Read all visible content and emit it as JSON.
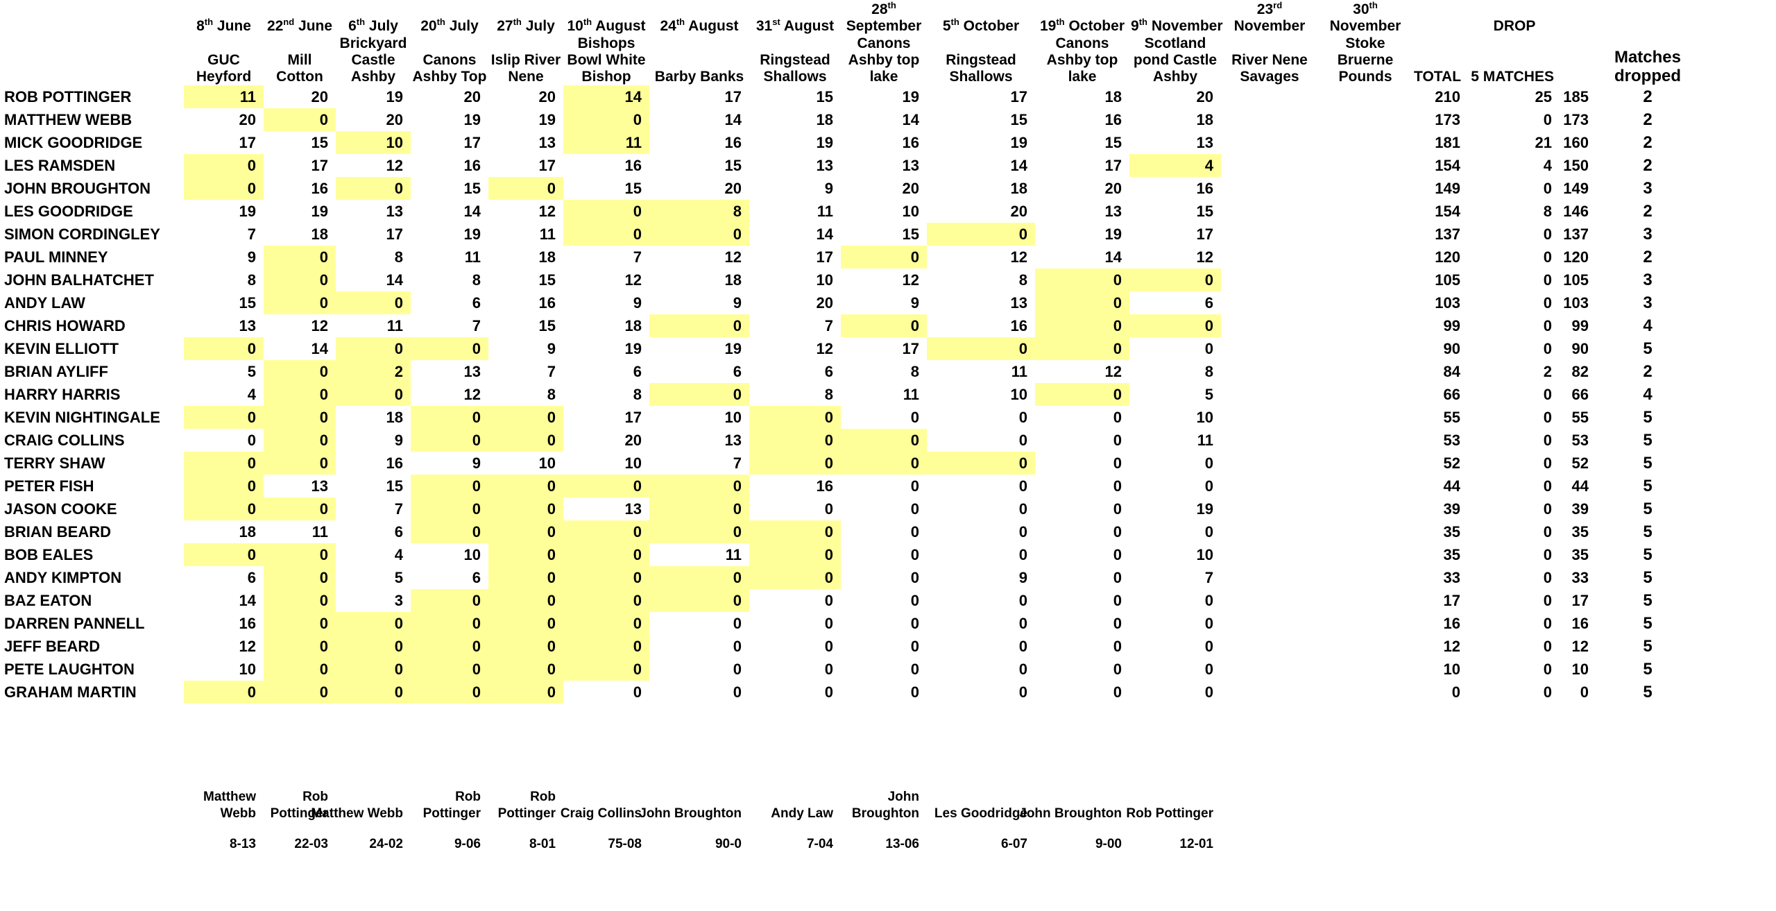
{
  "colors": {
    "highlight_yellow": "#ffff99",
    "text": "#000000",
    "background": "#ffffff"
  },
  "league_table": {
    "venue_columns": [
      {
        "date_lines": [
          "8th June"
        ],
        "venue_lines": [
          "GUC",
          "Heyford"
        ]
      },
      {
        "date_lines": [
          "22nd June"
        ],
        "venue_lines": [
          "Mill",
          "Cotton"
        ]
      },
      {
        "date_lines": [
          "6th July"
        ],
        "venue_lines": [
          "Brickyard",
          "Castle",
          "Ashby"
        ]
      },
      {
        "date_lines": [
          "20th July"
        ],
        "venue_lines": [
          "Canons",
          "Ashby Top"
        ]
      },
      {
        "date_lines": [
          "27th July"
        ],
        "venue_lines": [
          "Islip River",
          "Nene"
        ]
      },
      {
        "date_lines": [
          "10th August"
        ],
        "venue_lines": [
          "Bishops",
          "Bowl White",
          "Bishop"
        ]
      },
      {
        "date_lines": [
          "24th August"
        ],
        "venue_lines": [
          "Barby Banks"
        ]
      },
      {
        "date_lines": [
          "31st August"
        ],
        "venue_lines": [
          "Ringstead",
          "Shallows"
        ]
      },
      {
        "date_lines": [
          "28th",
          "September"
        ],
        "venue_lines": [
          "Canons",
          "Ashby top",
          "lake"
        ]
      },
      {
        "date_lines": [
          "5th October"
        ],
        "venue_lines": [
          "Ringstead",
          "Shallows"
        ]
      },
      {
        "date_lines": [
          "19th October"
        ],
        "venue_lines": [
          "Canons",
          "Ashby top",
          "lake"
        ]
      },
      {
        "date_lines": [
          "9th November"
        ],
        "venue_lines": [
          "Scotland",
          "pond Castle",
          "Ashby"
        ]
      },
      {
        "date_lines": [
          "23rd",
          "November"
        ],
        "venue_lines": [
          "River Nene",
          "Savages"
        ]
      },
      {
        "date_lines": [
          "30th",
          "November"
        ],
        "venue_lines": [
          "Stoke",
          "Bruerne",
          "Pounds"
        ]
      }
    ],
    "summary_columns": {
      "total_label": "TOTAL",
      "drop_label": "DROP",
      "five_matches_label": "5 MATCHES",
      "matches_dropped_lines": [
        "Matches",
        "dropped"
      ]
    },
    "anglers": [
      {
        "name": "ROB POTTINGER",
        "scores": [
          11,
          20,
          19,
          20,
          20,
          14,
          17,
          15,
          19,
          17,
          18,
          20
        ],
        "dropped_score_indexes": [
          0,
          5
        ],
        "total": 210,
        "drop": 25,
        "five_matches": 185,
        "matches_dropped": 2
      },
      {
        "name": "MATTHEW WEBB",
        "scores": [
          20,
          0,
          20,
          19,
          19,
          0,
          14,
          18,
          14,
          15,
          16,
          18
        ],
        "dropped_score_indexes": [
          1,
          5
        ],
        "total": 173,
        "drop": 0,
        "five_matches": 173,
        "matches_dropped": 2
      },
      {
        "name": "MICK GOODRIDGE",
        "scores": [
          17,
          15,
          10,
          17,
          13,
          11,
          16,
          19,
          16,
          19,
          15,
          13
        ],
        "dropped_score_indexes": [
          2,
          5
        ],
        "total": 181,
        "drop": 21,
        "five_matches": 160,
        "matches_dropped": 2
      },
      {
        "name": "LES RAMSDEN",
        "scores": [
          0,
          17,
          12,
          16,
          17,
          16,
          15,
          13,
          13,
          14,
          17,
          4
        ],
        "dropped_score_indexes": [
          0,
          11
        ],
        "total": 154,
        "drop": 4,
        "five_matches": 150,
        "matches_dropped": 2
      },
      {
        "name": "JOHN BROUGHTON",
        "scores": [
          0,
          16,
          0,
          15,
          0,
          15,
          20,
          9,
          20,
          18,
          20,
          16
        ],
        "dropped_score_indexes": [
          0,
          2,
          4
        ],
        "total": 149,
        "drop": 0,
        "five_matches": 149,
        "matches_dropped": 3
      },
      {
        "name": "LES GOODRIDGE",
        "scores": [
          19,
          19,
          13,
          14,
          12,
          0,
          8,
          11,
          10,
          20,
          13,
          15
        ],
        "dropped_score_indexes": [
          5,
          6
        ],
        "total": 154,
        "drop": 8,
        "five_matches": 146,
        "matches_dropped": 2
      },
      {
        "name": "SIMON CORDINGLEY",
        "scores": [
          7,
          18,
          17,
          19,
          11,
          0,
          0,
          14,
          15,
          0,
          19,
          17
        ],
        "dropped_score_indexes": [
          5,
          6,
          9
        ],
        "total": 137,
        "drop": 0,
        "five_matches": 137,
        "matches_dropped": 3
      },
      {
        "name": "PAUL MINNEY",
        "scores": [
          9,
          0,
          8,
          11,
          18,
          7,
          12,
          17,
          0,
          12,
          14,
          12
        ],
        "dropped_score_indexes": [
          1,
          8
        ],
        "total": 120,
        "drop": 0,
        "five_matches": 120,
        "matches_dropped": 2
      },
      {
        "name": "JOHN BALHATCHET",
        "scores": [
          8,
          0,
          14,
          8,
          15,
          12,
          18,
          10,
          12,
          8,
          0,
          0
        ],
        "dropped_score_indexes": [
          1,
          10,
          11
        ],
        "total": 105,
        "drop": 0,
        "five_matches": 105,
        "matches_dropped": 3
      },
      {
        "name": "ANDY LAW",
        "scores": [
          15,
          0,
          0,
          6,
          16,
          9,
          9,
          20,
          9,
          13,
          0,
          6
        ],
        "dropped_score_indexes": [
          1,
          2,
          10
        ],
        "total": 103,
        "drop": 0,
        "five_matches": 103,
        "matches_dropped": 3
      },
      {
        "name": "CHRIS HOWARD",
        "scores": [
          13,
          12,
          11,
          7,
          15,
          18,
          0,
          7,
          0,
          16,
          0,
          0
        ],
        "dropped_score_indexes": [
          6,
          8,
          10,
          11
        ],
        "total": 99,
        "drop": 0,
        "five_matches": 99,
        "matches_dropped": 4
      },
      {
        "name": "KEVIN ELLIOTT",
        "scores": [
          0,
          14,
          0,
          0,
          9,
          19,
          19,
          12,
          17,
          0,
          0,
          0
        ],
        "dropped_score_indexes": [
          0,
          2,
          3,
          9,
          10
        ],
        "total": 90,
        "drop": 0,
        "five_matches": 90,
        "matches_dropped": 5
      },
      {
        "name": "BRIAN AYLIFF",
        "scores": [
          5,
          0,
          2,
          13,
          7,
          6,
          6,
          6,
          8,
          11,
          12,
          8
        ],
        "dropped_score_indexes": [
          1,
          2
        ],
        "total": 84,
        "drop": 2,
        "five_matches": 82,
        "matches_dropped": 2
      },
      {
        "name": "HARRY HARRIS",
        "scores": [
          4,
          0,
          0,
          12,
          8,
          8,
          0,
          8,
          11,
          10,
          0,
          5
        ],
        "dropped_score_indexes": [
          1,
          2,
          6,
          10
        ],
        "total": 66,
        "drop": 0,
        "five_matches": 66,
        "matches_dropped": 4
      },
      {
        "name": "KEVIN NIGHTINGALE",
        "scores": [
          0,
          0,
          18,
          0,
          0,
          17,
          10,
          0,
          0,
          0,
          0,
          10
        ],
        "dropped_score_indexes": [
          0,
          1,
          3,
          4,
          7
        ],
        "total": 55,
        "drop": 0,
        "five_matches": 55,
        "matches_dropped": 5
      },
      {
        "name": "CRAIG COLLINS",
        "scores": [
          0,
          0,
          9,
          0,
          0,
          20,
          13,
          0,
          0,
          0,
          0,
          11
        ],
        "dropped_score_indexes": [
          1,
          3,
          4,
          7,
          8
        ],
        "total": 53,
        "drop": 0,
        "five_matches": 53,
        "matches_dropped": 5
      },
      {
        "name": "TERRY SHAW",
        "scores": [
          0,
          0,
          16,
          9,
          10,
          10,
          7,
          0,
          0,
          0,
          0,
          0
        ],
        "dropped_score_indexes": [
          0,
          1,
          7,
          8,
          9
        ],
        "total": 52,
        "drop": 0,
        "five_matches": 52,
        "matches_dropped": 5
      },
      {
        "name": "PETER FISH",
        "scores": [
          0,
          13,
          15,
          0,
          0,
          0,
          0,
          16,
          0,
          0,
          0,
          0
        ],
        "dropped_score_indexes": [
          0,
          3,
          4,
          5,
          6
        ],
        "total": 44,
        "drop": 0,
        "five_matches": 44,
        "matches_dropped": 5
      },
      {
        "name": "JASON COOKE",
        "scores": [
          0,
          0,
          7,
          0,
          0,
          13,
          0,
          0,
          0,
          0,
          0,
          19
        ],
        "dropped_score_indexes": [
          0,
          1,
          3,
          4,
          6
        ],
        "total": 39,
        "drop": 0,
        "five_matches": 39,
        "matches_dropped": 5
      },
      {
        "name": "BRIAN BEARD",
        "scores": [
          18,
          11,
          6,
          0,
          0,
          0,
          0,
          0,
          0,
          0,
          0,
          0
        ],
        "dropped_score_indexes": [
          3,
          4,
          5,
          6,
          7
        ],
        "total": 35,
        "drop": 0,
        "five_matches": 35,
        "matches_dropped": 5
      },
      {
        "name": "BOB EALES",
        "scores": [
          0,
          0,
          4,
          10,
          0,
          0,
          11,
          0,
          0,
          0,
          0,
          10
        ],
        "dropped_score_indexes": [
          0,
          1,
          4,
          5,
          7
        ],
        "total": 35,
        "drop": 0,
        "five_matches": 35,
        "matches_dropped": 5
      },
      {
        "name": "ANDY KIMPTON",
        "scores": [
          6,
          0,
          5,
          6,
          0,
          0,
          0,
          0,
          0,
          9,
          0,
          7
        ],
        "dropped_score_indexes": [
          1,
          4,
          5,
          6,
          7
        ],
        "total": 33,
        "drop": 0,
        "five_matches": 33,
        "matches_dropped": 5
      },
      {
        "name": "BAZ EATON",
        "scores": [
          14,
          0,
          3,
          0,
          0,
          0,
          0,
          0,
          0,
          0,
          0,
          0
        ],
        "dropped_score_indexes": [
          1,
          3,
          4,
          5,
          6
        ],
        "total": 17,
        "drop": 0,
        "five_matches": 17,
        "matches_dropped": 5
      },
      {
        "name": "DARREN PANNELL",
        "scores": [
          16,
          0,
          0,
          0,
          0,
          0,
          0,
          0,
          0,
          0,
          0,
          0
        ],
        "dropped_score_indexes": [
          1,
          2,
          3,
          4,
          5
        ],
        "total": 16,
        "drop": 0,
        "five_matches": 16,
        "matches_dropped": 5
      },
      {
        "name": "JEFF BEARD",
        "scores": [
          12,
          0,
          0,
          0,
          0,
          0,
          0,
          0,
          0,
          0,
          0,
          0
        ],
        "dropped_score_indexes": [
          1,
          2,
          3,
          4,
          5
        ],
        "total": 12,
        "drop": 0,
        "five_matches": 12,
        "matches_dropped": 5
      },
      {
        "name": "PETE LAUGHTON",
        "scores": [
          10,
          0,
          0,
          0,
          0,
          0,
          0,
          0,
          0,
          0,
          0,
          0
        ],
        "dropped_score_indexes": [
          1,
          2,
          3,
          4,
          5
        ],
        "total": 10,
        "drop": 0,
        "five_matches": 10,
        "matches_dropped": 5
      },
      {
        "name": "GRAHAM MARTIN",
        "scores": [
          0,
          0,
          0,
          0,
          0,
          0,
          0,
          0,
          0,
          0,
          0,
          0
        ],
        "dropped_score_indexes": [
          0,
          1,
          2,
          3,
          4
        ],
        "total": 0,
        "drop": 0,
        "five_matches": 0,
        "matches_dropped": 5
      }
    ]
  },
  "match_winners": {
    "winner_lines": [
      [
        "Matthew",
        "Webb"
      ],
      [
        "Rob",
        "Pottinger"
      ],
      [
        "Matthew Webb"
      ],
      [
        "Rob",
        "Pottinger"
      ],
      [
        "Rob",
        "Pottinger"
      ],
      [
        "Craig Collins"
      ],
      [
        "John Broughton"
      ],
      [
        "Andy Law"
      ],
      [
        "John",
        "Broughton"
      ],
      [
        "Les Goodridge"
      ],
      [
        "John Broughton"
      ],
      [
        "Rob Pottinger"
      ],
      [],
      []
    ],
    "winning_weights": [
      "8-13",
      "22-03",
      "24-02",
      "9-06",
      "8-01",
      "75-08",
      "90-0",
      "7-04",
      "13-06",
      "6-07",
      "9-00",
      "12-01",
      "",
      ""
    ]
  }
}
